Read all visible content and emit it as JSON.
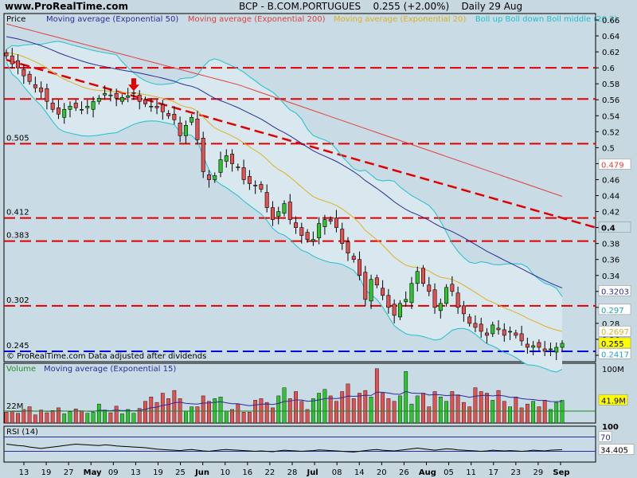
{
  "site": "www.ProRealTime.com",
  "header": {
    "symbol": "BCP - B.COM.PORTUGUES",
    "price": "0.255 (+2.00%)",
    "period": "Daily 29 Aug"
  },
  "colors": {
    "background": "#c8d8e0",
    "panel": "#c9dbe4",
    "up": "#2cc52c",
    "down": "#e45050",
    "ema50": "#2b2b9a",
    "ema200": "#e04040",
    "ema20": "#e0b020",
    "boll": "#20c0d0",
    "hline": "#e00000",
    "support": "#0000e0"
  },
  "chart_data": [
    {
      "type": "candlestick",
      "panel": "price",
      "ylabel": "Price",
      "yticks": [
        "0.66",
        "0.64",
        "0.62",
        "0.6",
        "0.58",
        "0.56",
        "0.54",
        "0.52",
        "0.5",
        "0.48",
        "0.46",
        "0.44",
        "0.42",
        "0.4",
        "0.38",
        "0.36",
        "0.34",
        "0.32",
        "0.3",
        "0.28",
        "0.26",
        "0.24"
      ],
      "ylim": [
        0.232,
        0.668
      ],
      "xticks": [
        "13",
        "19",
        "27",
        "May",
        "09",
        "13",
        "19",
        "25",
        "Jun",
        "10",
        "16",
        "22",
        "28",
        "Jul",
        "08",
        "14",
        "20",
        "26",
        "Aug",
        "05",
        "11",
        "17",
        "23",
        "29",
        "Sep"
      ],
      "legend": [
        {
          "label": "Moving average (Exponential 50)",
          "color": "#2b2b9a"
        },
        {
          "label": "Moving average (Exponential 200)",
          "color": "#e04040"
        },
        {
          "label": "Moving average (Exponential 20)",
          "color": "#e0b020"
        },
        {
          "label": "Boll up Boll down Boll middle (20 2)",
          "color": "#20c0d0"
        }
      ],
      "close": [
        0.615,
        0.605,
        0.6,
        0.59,
        0.583,
        0.575,
        0.57,
        0.558,
        0.548,
        0.542,
        0.548,
        0.552,
        0.55,
        0.548,
        0.552,
        0.558,
        0.562,
        0.568,
        0.566,
        0.562,
        0.563,
        0.565,
        0.568,
        0.558,
        0.555,
        0.552,
        0.55,
        0.545,
        0.54,
        0.535,
        0.515,
        0.528,
        0.538,
        0.51,
        0.47,
        0.46,
        0.465,
        0.485,
        0.49,
        0.48,
        0.475,
        0.46,
        0.455,
        0.452,
        0.448,
        0.425,
        0.41,
        0.42,
        0.43,
        0.41,
        0.4,
        0.39,
        0.385,
        0.385,
        0.405,
        0.41,
        0.408,
        0.4,
        0.38,
        0.368,
        0.36,
        0.34,
        0.31,
        0.335,
        0.328,
        0.315,
        0.3,
        0.29,
        0.305,
        0.31,
        0.33,
        0.345,
        0.33,
        0.32,
        0.3,
        0.305,
        0.325,
        0.32,
        0.3,
        0.292,
        0.28,
        0.275,
        0.27,
        0.265,
        0.278,
        0.272,
        0.265,
        0.27,
        0.265,
        0.258,
        0.25,
        0.252,
        0.25,
        0.245,
        0.248,
        0.25,
        0.255
      ],
      "labels": [
        {
          "text": "0.505",
          "value": 0.505
        },
        {
          "text": "0.412",
          "value": 0.412
        },
        {
          "text": "0.383",
          "value": 0.383
        },
        {
          "text": "0.302",
          "value": 0.302
        },
        {
          "text": "0.245",
          "value": 0.245
        }
      ],
      "horizontal_levels": [
        0.6,
        0.561,
        0.505,
        0.412,
        0.383,
        0.302
      ],
      "support_level": 0.245,
      "trendline": {
        "from": [
          0,
          0.61
        ],
        "to": [
          97,
          0.41
        ]
      },
      "arrow_at": {
        "index": 22,
        "value": 0.575
      },
      "right_labels": [
        {
          "text": "0.479",
          "value": 0.479,
          "bg": "#ffffff",
          "color": "#e04040"
        },
        {
          "text": "0.4",
          "value": 0.4,
          "bg": "#c9dbe4",
          "color": "#000000"
        },
        {
          "text": "0.3203",
          "value": 0.3203,
          "bg": "#ffffff",
          "color": "#2b2b9a"
        },
        {
          "text": "0.297",
          "value": 0.297,
          "bg": "#ffffff",
          "color": "#20a0c0"
        },
        {
          "text": "0.2697",
          "value": 0.2697,
          "bg": "#ffffff",
          "color": "#e0b020"
        },
        {
          "text": "0.255",
          "value": 0.255,
          "bg": "#ffff00",
          "color": "#000000"
        },
        {
          "text": "0.2417",
          "value": 0.2417,
          "bg": "#ffffff",
          "color": "#20a0c0"
        }
      ],
      "footer_note": "© ProRealTime.com  Data adjusted after dividends"
    },
    {
      "type": "bar",
      "panel": "volume",
      "legend": [
        {
          "label": "Volume",
          "color": "#2b8a2b"
        },
        {
          "label": "Moving average (Exponential 15)",
          "color": "#2b2b9a"
        }
      ],
      "yticks": [
        "100M"
      ],
      "left_label": "22M",
      "current_label": "41.9M",
      "unit": "M",
      "ylim": [
        0,
        110
      ],
      "values": [
        20,
        22,
        18,
        25,
        30,
        15,
        24,
        19,
        23,
        28,
        17,
        21,
        26,
        22,
        18,
        20,
        35,
        24,
        19,
        31,
        17,
        25,
        18,
        27,
        40,
        48,
        38,
        55,
        45,
        60,
        45,
        22,
        30,
        30,
        50,
        40,
        45,
        48,
        22,
        25,
        35,
        20,
        20,
        42,
        45,
        38,
        28,
        50,
        65,
        45,
        58,
        40,
        25,
        45,
        55,
        62,
        50,
        40,
        58,
        72,
        45,
        55,
        60,
        48,
        100,
        55,
        45,
        40,
        50,
        95,
        35,
        50,
        55,
        30,
        58,
        48,
        40,
        58,
        52,
        38,
        30,
        65,
        58,
        55,
        42,
        60,
        40,
        30,
        48,
        28,
        35,
        40,
        30,
        42,
        25,
        38,
        41.9
      ]
    },
    {
      "type": "line",
      "panel": "rsi",
      "legend": [
        {
          "label": "RSI (14)",
          "color": "#000000"
        }
      ],
      "yticks": [
        "100"
      ],
      "upper_label": "70",
      "current_label": "34.405",
      "ylim": [
        0,
        100
      ],
      "levels": [
        70,
        30
      ],
      "values": [
        50,
        48,
        46,
        45,
        42,
        40,
        38,
        40,
        42,
        44,
        46,
        48,
        50,
        49,
        48,
        47,
        46,
        48,
        47,
        45,
        44,
        43,
        42,
        41,
        40,
        38,
        36,
        35,
        34,
        33,
        32,
        34,
        35,
        33,
        31,
        30,
        32,
        34,
        35,
        34,
        33,
        32,
        31,
        30,
        31,
        30,
        29,
        31,
        33,
        32,
        31,
        30,
        31,
        32,
        34,
        33,
        32,
        31,
        30,
        29,
        28,
        30,
        32,
        34,
        35,
        33,
        32,
        31,
        33,
        35,
        37,
        39,
        37,
        35,
        33,
        35,
        37,
        36,
        34,
        33,
        32,
        31,
        30,
        31,
        33,
        32,
        31,
        32,
        31,
        30,
        31,
        33,
        32,
        31,
        33,
        34,
        34.405
      ]
    }
  ]
}
